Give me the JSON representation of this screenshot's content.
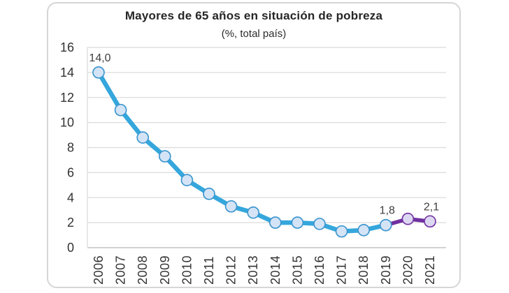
{
  "card": {
    "title": "Mayores de 65 años en situación de pobreza",
    "subtitle": "(%, total país)"
  },
  "colors": {
    "historic_line": "#35a7dc",
    "historic_marker_fill": "#d4e4f6",
    "historic_marker_stroke": "#3f97d0",
    "recent_line": "#7030a0",
    "recent_marker_fill": "#ddd8f2",
    "recent_marker_stroke": "#7638a6",
    "gridline": "#dbdbdb",
    "axis_line": "#c3c3c3",
    "tick_text": "#333333"
  },
  "chart_data": {
    "type": "line",
    "title": "Mayores de 65 años en situación de pobreza",
    "subtitle": "(%, total país)",
    "xlabel": "",
    "ylabel": "",
    "ylim": [
      0,
      16
    ],
    "grid": true,
    "legend": "none",
    "yticks": [
      {
        "value": 0,
        "label": "0"
      },
      {
        "value": 2,
        "label": "2"
      },
      {
        "value": 4,
        "label": "4"
      },
      {
        "value": 6,
        "label": "6"
      },
      {
        "value": 8,
        "label": "8"
      },
      {
        "value": 10,
        "label": "10"
      },
      {
        "value": 12,
        "label": "12"
      },
      {
        "value": 14,
        "label": "14"
      },
      {
        "value": 16,
        "label": "16"
      }
    ],
    "x_ticks": [
      {
        "year": 2006,
        "label": "2006"
      },
      {
        "year": 2007,
        "label": "2007"
      },
      {
        "year": 2008,
        "label": "2008"
      },
      {
        "year": 2009,
        "label": "2009"
      },
      {
        "year": 2010,
        "label": "2010"
      },
      {
        "year": 2011,
        "label": "2011"
      },
      {
        "year": 2012,
        "label": "2012"
      },
      {
        "year": 2013,
        "label": "2013"
      },
      {
        "year": 2014,
        "label": "2014"
      },
      {
        "year": 2015,
        "label": "2015"
      },
      {
        "year": 2016,
        "label": "2016"
      },
      {
        "year": 2017,
        "label": "2017"
      },
      {
        "year": 2018,
        "label": "2018"
      },
      {
        "year": 2019,
        "label": "2019"
      },
      {
        "year": 2020,
        "label": "2020"
      },
      {
        "year": 2021,
        "label": "2021"
      }
    ],
    "series": [
      {
        "name": "historico-2006-2019",
        "line_color": "#35a7dc",
        "line_width": 6.5,
        "marker_fill": "#d4e4f6",
        "marker_stroke": "#3f97d0",
        "years": [
          2006,
          2007,
          2008,
          2009,
          2010,
          2011,
          2012,
          2013,
          2014,
          2015,
          2016,
          2017,
          2018,
          2019
        ],
        "values": [
          14.0,
          11.0,
          8.8,
          7.3,
          5.4,
          4.3,
          3.3,
          2.8,
          2.0,
          2.0,
          1.9,
          1.3,
          1.4,
          1.8
        ]
      },
      {
        "name": "reciente-2019-2021",
        "line_color": "#7030a0",
        "line_width": 5.5,
        "marker_fill": "#ddd8f2",
        "marker_stroke": "#7638a6",
        "years": [
          2019,
          2020,
          2021
        ],
        "values": [
          1.8,
          2.3,
          2.1
        ],
        "marker_years": [
          2020,
          2021
        ]
      }
    ],
    "annotations": [
      {
        "text": "14,0",
        "year": 2006,
        "value": 14.0
      },
      {
        "text": "1,8",
        "year": 2019,
        "value": 1.8
      },
      {
        "text": "2,1",
        "year": 2021,
        "value": 2.1
      }
    ]
  }
}
